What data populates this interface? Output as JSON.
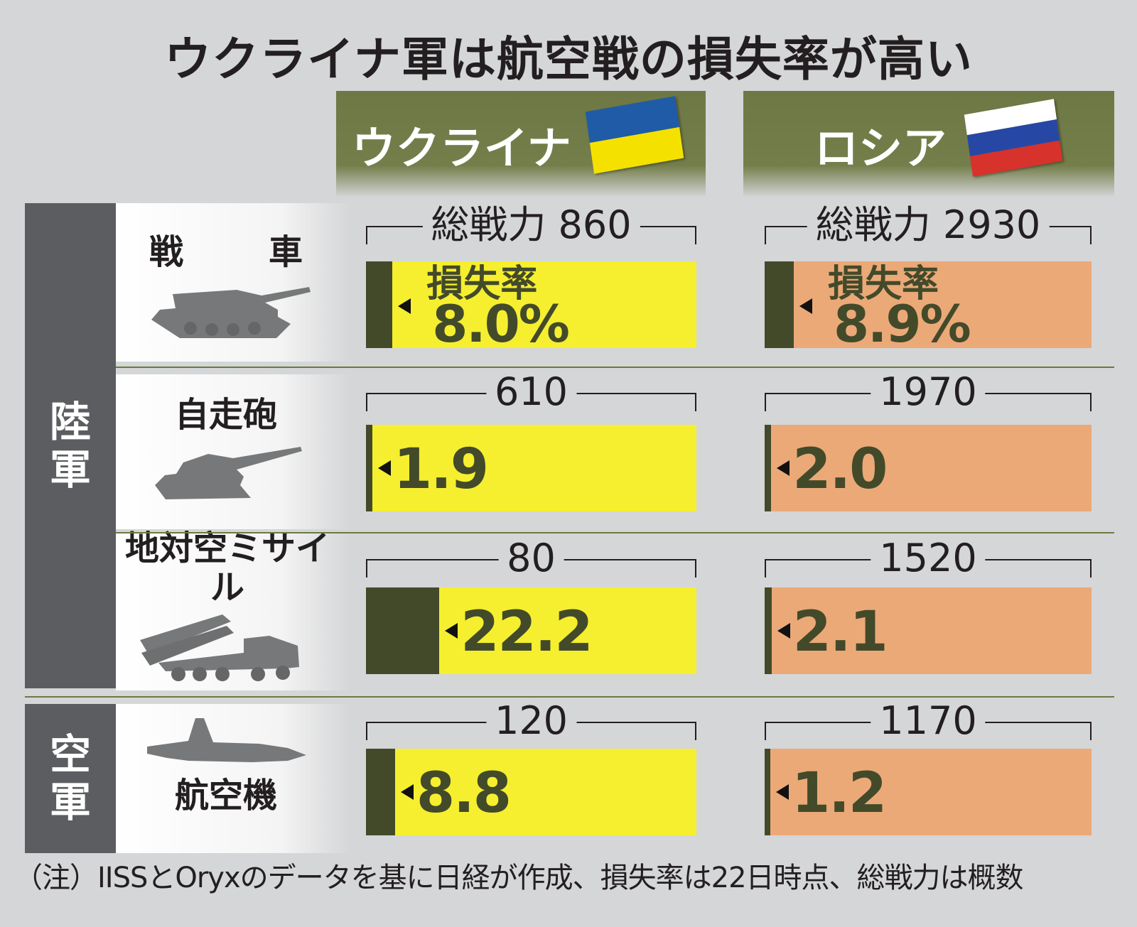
{
  "title": "ウクライナ軍は航空戦の損失率が高い",
  "countries": [
    {
      "name": "ウクライナ",
      "flag_colors": [
        "#1f5ba6",
        "#f5e100"
      ],
      "bar_color": "#f5ef2f"
    },
    {
      "name": "ロシア",
      "flag_colors": [
        "#ffffff",
        "#2747a5",
        "#d7322b"
      ],
      "bar_color": "#eba978"
    }
  ],
  "branches": [
    {
      "name": "陸軍"
    },
    {
      "name": "空軍"
    }
  ],
  "categories": [
    {
      "label": "戦　車",
      "icon": "tank-icon"
    },
    {
      "label": "自走砲",
      "icon": "self-propelled-gun-icon"
    },
    {
      "label": "地対空ミサイル",
      "icon": "sam-launcher-icon"
    },
    {
      "label": "航空機",
      "icon": "aircraft-icon"
    }
  ],
  "metric_label": "損失率",
  "total_label_prefix": "総戦力",
  "loss_marker_color": "#434a2a",
  "chart_data": {
    "type": "bar",
    "title": "ウクライナ軍は航空戦の損失率が高い",
    "categories": [
      "戦車",
      "自走砲",
      "地対空ミサイル",
      "航空機"
    ],
    "series": [
      {
        "name": "ウクライナ",
        "total_strength": [
          860,
          610,
          80,
          120
        ],
        "loss_rate_pct": [
          8.0,
          1.9,
          22.2,
          8.8
        ]
      },
      {
        "name": "ロシア",
        "total_strength": [
          2930,
          1970,
          1520,
          1170
        ],
        "loss_rate_pct": [
          8.9,
          2.0,
          2.1,
          1.2
        ]
      }
    ],
    "value_labels": {
      "ukraine": [
        "8.0%",
        "1.9",
        "22.2",
        "8.8"
      ],
      "russia": [
        "8.9%",
        "2.0",
        "2.1",
        "1.2"
      ]
    },
    "total_labels": {
      "ukraine": [
        "総戦力 860",
        "610",
        "80",
        "120"
      ],
      "russia": [
        "総戦力 2930",
        "1970",
        "1520",
        "1170"
      ]
    }
  },
  "note": "（注）IISSとOryxのデータを基に日経が作成、損失率は22日時点、総戦力は概数"
}
